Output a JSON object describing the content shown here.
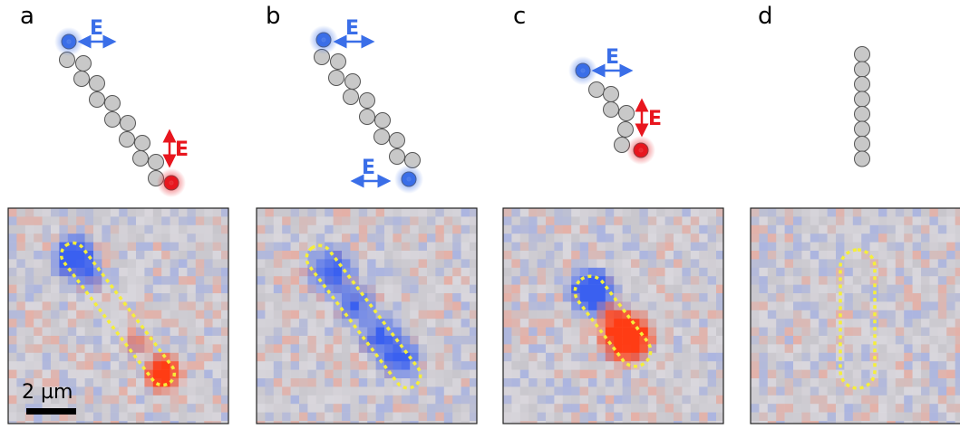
{
  "panels": [
    {
      "letter": "a",
      "e_labels": [
        "E",
        "E"
      ]
    },
    {
      "letter": "b",
      "e_labels": [
        "E",
        "E"
      ]
    },
    {
      "letter": "c",
      "e_labels": [
        "E",
        "E"
      ]
    },
    {
      "letter": "d",
      "e_labels": []
    }
  ],
  "scale_bar": {
    "label": "2 µm"
  },
  "colors": {
    "blue": "#3a6ee8",
    "red": "#e8161e",
    "dashed_outline": "#f5ef3a",
    "particle_fill": "#c8c8c8",
    "particle_stroke": "#555555",
    "map_background": "#c8c6cc"
  }
}
